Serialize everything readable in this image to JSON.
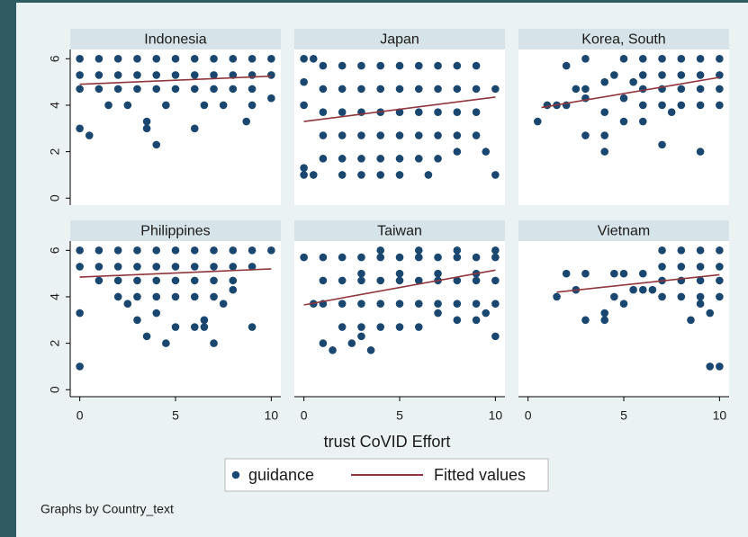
{
  "chart_data": {
    "type": "scatter",
    "xlabel": "trust CoVID Effort",
    "note": "Graphs by Country_text",
    "xlim": [
      -0.5,
      10.5
    ],
    "xticks": [
      0,
      5,
      10
    ],
    "ylim": [
      -0.3,
      6.4
    ],
    "yticks": [
      0,
      2,
      4,
      6
    ],
    "series": [
      {
        "name": "guidance",
        "color": "#1a476f"
      },
      {
        "name": "Fitted values",
        "color": "#90353b"
      }
    ],
    "panels": [
      {
        "title": "Indonesia",
        "fit": [
          [
            0,
            4.9
          ],
          [
            10,
            5.25
          ]
        ],
        "points": [
          [
            0,
            6
          ],
          [
            1,
            6
          ],
          [
            2,
            6
          ],
          [
            3,
            6
          ],
          [
            4,
            6
          ],
          [
            5,
            6
          ],
          [
            6,
            6
          ],
          [
            7,
            6
          ],
          [
            8,
            6
          ],
          [
            9,
            6
          ],
          [
            10,
            6
          ],
          [
            0,
            5.3
          ],
          [
            1,
            5.3
          ],
          [
            2,
            5.3
          ],
          [
            3,
            5.3
          ],
          [
            4,
            5.3
          ],
          [
            5,
            5.3
          ],
          [
            6,
            5.3
          ],
          [
            7,
            5.3
          ],
          [
            8,
            5.3
          ],
          [
            9,
            5.3
          ],
          [
            10,
            5.3
          ],
          [
            0,
            4.7
          ],
          [
            1,
            4.7
          ],
          [
            2,
            4.7
          ],
          [
            3,
            4.7
          ],
          [
            4,
            4.7
          ],
          [
            5,
            4.7
          ],
          [
            6,
            4.7
          ],
          [
            7,
            4.7
          ],
          [
            8,
            4.7
          ],
          [
            9,
            4.7
          ],
          [
            1.5,
            4
          ],
          [
            2.5,
            4
          ],
          [
            4.5,
            4
          ],
          [
            6.5,
            4
          ],
          [
            7.5,
            4
          ],
          [
            10,
            4.3
          ],
          [
            9,
            4
          ],
          [
            0,
            3
          ],
          [
            0.5,
            2.7
          ],
          [
            3.5,
            3.3
          ],
          [
            3.5,
            3
          ],
          [
            4,
            2.3
          ],
          [
            6,
            3
          ],
          [
            8.7,
            3.3
          ]
        ]
      },
      {
        "title": "Japan",
        "fit": [
          [
            0,
            3.3
          ],
          [
            10,
            4.35
          ]
        ],
        "points": [
          [
            1,
            5.7
          ],
          [
            2,
            5.7
          ],
          [
            3,
            5.7
          ],
          [
            4,
            5.7
          ],
          [
            5,
            5.7
          ],
          [
            6,
            5.7
          ],
          [
            7,
            5.7
          ],
          [
            8,
            5.7
          ],
          [
            9,
            5.7
          ],
          [
            1,
            4.7
          ],
          [
            2,
            4.7
          ],
          [
            3,
            4.7
          ],
          [
            4,
            4.7
          ],
          [
            5,
            4.7
          ],
          [
            6,
            4.7
          ],
          [
            7,
            4.7
          ],
          [
            8,
            4.7
          ],
          [
            9,
            4.7
          ],
          [
            1,
            3.7
          ],
          [
            2,
            3.7
          ],
          [
            3,
            3.7
          ],
          [
            4,
            3.7
          ],
          [
            5,
            3.7
          ],
          [
            6,
            3.7
          ],
          [
            7,
            3.7
          ],
          [
            8,
            3.7
          ],
          [
            9,
            3.7
          ],
          [
            1,
            2.7
          ],
          [
            2,
            2.7
          ],
          [
            3,
            2.7
          ],
          [
            4,
            2.7
          ],
          [
            5,
            2.7
          ],
          [
            6,
            2.7
          ],
          [
            7,
            2.7
          ],
          [
            8,
            2.7
          ],
          [
            9,
            2.7
          ],
          [
            1,
            1.7
          ],
          [
            2,
            1.7
          ],
          [
            3,
            1.7
          ],
          [
            4,
            1.7
          ],
          [
            5,
            1.7
          ],
          [
            6,
            1.7
          ],
          [
            7,
            1.7
          ],
          [
            0,
            6
          ],
          [
            0.5,
            6
          ],
          [
            0,
            5
          ],
          [
            0,
            4
          ],
          [
            0,
            1.3
          ],
          [
            0,
            1
          ],
          [
            0.5,
            1
          ],
          [
            2,
            1
          ],
          [
            3,
            1
          ],
          [
            4,
            1
          ],
          [
            5,
            1
          ],
          [
            6.5,
            1
          ],
          [
            10,
            1
          ],
          [
            9.5,
            2
          ],
          [
            10,
            4.7
          ],
          [
            8,
            2
          ]
        ]
      },
      {
        "title": "Korea, South",
        "fit": [
          [
            0.7,
            3.9
          ],
          [
            10,
            5.2
          ]
        ],
        "points": [
          [
            6,
            6
          ],
          [
            7,
            6
          ],
          [
            8,
            6
          ],
          [
            9,
            6
          ],
          [
            10,
            6
          ],
          [
            6,
            5.3
          ],
          [
            7,
            5.3
          ],
          [
            8,
            5.3
          ],
          [
            9,
            5.3
          ],
          [
            10,
            5.3
          ],
          [
            6,
            4.7
          ],
          [
            7,
            4.7
          ],
          [
            8,
            4.7
          ],
          [
            9,
            4.7
          ],
          [
            10,
            4.7
          ],
          [
            6,
            4
          ],
          [
            7,
            4
          ],
          [
            8,
            4
          ],
          [
            9,
            4
          ],
          [
            10,
            4
          ],
          [
            0.5,
            3.3
          ],
          [
            1,
            4
          ],
          [
            2,
            4
          ],
          [
            2,
            5.7
          ],
          [
            3,
            6
          ],
          [
            3,
            4.3
          ],
          [
            3,
            2.7
          ],
          [
            4,
            5
          ],
          [
            4,
            3.7
          ],
          [
            4,
            2.7
          ],
          [
            4,
            2
          ],
          [
            5,
            6
          ],
          [
            5,
            4.3
          ],
          [
            5,
            3.3
          ],
          [
            5.5,
            5
          ],
          [
            7,
            2.3
          ],
          [
            9,
            2
          ],
          [
            3,
            4.7
          ],
          [
            4.5,
            5.3
          ],
          [
            6,
            3.3
          ],
          [
            7.5,
            3.7
          ],
          [
            1.5,
            4
          ],
          [
            2.5,
            4.7
          ]
        ]
      },
      {
        "title": "Philippines",
        "fit": [
          [
            0,
            4.85
          ],
          [
            10,
            5.2
          ]
        ],
        "points": [
          [
            0,
            6
          ],
          [
            1,
            6
          ],
          [
            2,
            6
          ],
          [
            3,
            6
          ],
          [
            4,
            6
          ],
          [
            5,
            6
          ],
          [
            6,
            6
          ],
          [
            7,
            6
          ],
          [
            8,
            6
          ],
          [
            9,
            6
          ],
          [
            10,
            6
          ],
          [
            0,
            5.3
          ],
          [
            1,
            5.3
          ],
          [
            2,
            5.3
          ],
          [
            3,
            5.3
          ],
          [
            4,
            5.3
          ],
          [
            5,
            5.3
          ],
          [
            6,
            5.3
          ],
          [
            7,
            5.3
          ],
          [
            8,
            5.3
          ],
          [
            9,
            5.3
          ],
          [
            1,
            4.7
          ],
          [
            2,
            4.7
          ],
          [
            3,
            4.7
          ],
          [
            4,
            4.7
          ],
          [
            5,
            4.7
          ],
          [
            6,
            4.7
          ],
          [
            7,
            4.7
          ],
          [
            8,
            4.7
          ],
          [
            2,
            4
          ],
          [
            3,
            4
          ],
          [
            4,
            4
          ],
          [
            5,
            4
          ],
          [
            6,
            4
          ],
          [
            7,
            4
          ],
          [
            8,
            4.3
          ],
          [
            2.5,
            3.7
          ],
          [
            3,
            3
          ],
          [
            3.5,
            2.3
          ],
          [
            4,
            3.3
          ],
          [
            4.5,
            2
          ],
          [
            5,
            2.7
          ],
          [
            6,
            2.7
          ],
          [
            6.5,
            3
          ],
          [
            6.5,
            2.7
          ],
          [
            7,
            2
          ],
          [
            9,
            2.7
          ],
          [
            0,
            3.3
          ],
          [
            0,
            1
          ],
          [
            7.5,
            3.7
          ]
        ]
      },
      {
        "title": "Taiwan",
        "fit": [
          [
            0,
            3.65
          ],
          [
            10,
            5.15
          ]
        ],
        "points": [
          [
            1,
            5.7
          ],
          [
            2,
            5.7
          ],
          [
            3,
            5.7
          ],
          [
            4,
            5.7
          ],
          [
            5,
            5.7
          ],
          [
            6,
            5.7
          ],
          [
            7,
            5.7
          ],
          [
            8,
            5.7
          ],
          [
            9,
            5.7
          ],
          [
            10,
            5.7
          ],
          [
            1,
            4.7
          ],
          [
            2,
            4.7
          ],
          [
            3,
            4.7
          ],
          [
            4,
            4.7
          ],
          [
            5,
            4.7
          ],
          [
            6,
            4.7
          ],
          [
            7,
            4.7
          ],
          [
            8,
            4.7
          ],
          [
            9,
            4.7
          ],
          [
            10,
            4.7
          ],
          [
            1,
            3.7
          ],
          [
            2,
            3.7
          ],
          [
            3,
            3.7
          ],
          [
            4,
            3.7
          ],
          [
            5,
            3.7
          ],
          [
            6,
            3.7
          ],
          [
            7,
            3.7
          ],
          [
            8,
            3.7
          ],
          [
            9,
            3.7
          ],
          [
            10,
            3.7
          ],
          [
            2,
            2.7
          ],
          [
            3,
            2.7
          ],
          [
            4,
            2.7
          ],
          [
            5,
            2.7
          ],
          [
            6,
            2.7
          ],
          [
            0,
            5.7
          ],
          [
            0.5,
            3.7
          ],
          [
            1,
            2
          ],
          [
            1.5,
            1.7
          ],
          [
            2.5,
            2
          ],
          [
            3.5,
            1.7
          ],
          [
            3,
            2.3
          ],
          [
            10,
            2.3
          ],
          [
            8,
            3
          ],
          [
            9,
            3
          ],
          [
            7,
            3.3
          ],
          [
            9.5,
            3.3
          ],
          [
            6,
            6
          ],
          [
            8,
            6
          ],
          [
            10,
            6
          ],
          [
            4,
            6
          ],
          [
            3,
            5
          ],
          [
            5,
            5
          ],
          [
            7,
            5
          ],
          [
            9,
            5
          ]
        ]
      },
      {
        "title": "Vietnam",
        "fit": [
          [
            1.5,
            4.2
          ],
          [
            10,
            4.95
          ]
        ],
        "points": [
          [
            7,
            6
          ],
          [
            8,
            6
          ],
          [
            9,
            6
          ],
          [
            10,
            6
          ],
          [
            7,
            5.3
          ],
          [
            8,
            5.3
          ],
          [
            9,
            5.3
          ],
          [
            10,
            5.3
          ],
          [
            7,
            4.7
          ],
          [
            8,
            4.7
          ],
          [
            9,
            4.7
          ],
          [
            10,
            4.7
          ],
          [
            7,
            4
          ],
          [
            8,
            4
          ],
          [
            9,
            4
          ],
          [
            10,
            4
          ],
          [
            1.5,
            4
          ],
          [
            2,
            5
          ],
          [
            2.5,
            4.3
          ],
          [
            3,
            5
          ],
          [
            3,
            3
          ],
          [
            4,
            3.3
          ],
          [
            4,
            3
          ],
          [
            4.5,
            5
          ],
          [
            4.5,
            4
          ],
          [
            5,
            5
          ],
          [
            5,
            3.7
          ],
          [
            5.5,
            4.3
          ],
          [
            6,
            5
          ],
          [
            6,
            4.3
          ],
          [
            6.5,
            4.3
          ],
          [
            8.5,
            3
          ],
          [
            9.5,
            3.3
          ],
          [
            9.5,
            1
          ],
          [
            10,
            1
          ],
          [
            9,
            3.7
          ]
        ]
      }
    ]
  }
}
